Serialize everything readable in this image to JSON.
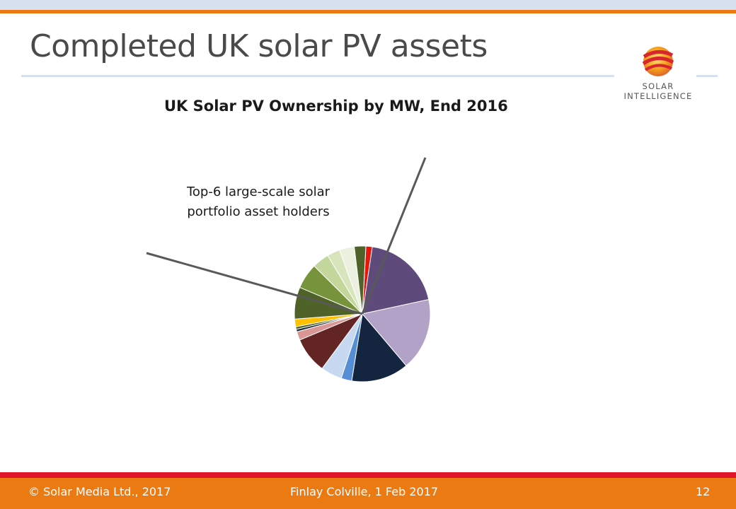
{
  "slide": {
    "title": "Completed UK solar PV assets",
    "page_number": "12"
  },
  "logo": {
    "line1": "SOLAR",
    "line2": "INTELLIGENCE"
  },
  "annotation": {
    "line1": "Top-6 large-scale solar",
    "line2": "portfolio asset holders"
  },
  "footer": {
    "copyright": "© Solar Media Ltd., 2017",
    "author_date": "Finlay Colville, 1 Feb 2017",
    "page": "12"
  },
  "chart_data": {
    "type": "pie",
    "title": "UK Solar PV Ownership by MW, End 2016",
    "start_angle_deg": 3,
    "direction": "clockwise",
    "slices": [
      {
        "value": 1.5,
        "color": "#e8150c"
      },
      {
        "value": 19.0,
        "color": "#5f4a7c"
      },
      {
        "value": 17.0,
        "color": "#b3a2c8"
      },
      {
        "value": 13.5,
        "color": "#13253f"
      },
      {
        "value": 2.5,
        "color": "#558ed5"
      },
      {
        "value": 5.0,
        "color": "#c6d9f0"
      },
      {
        "value": 8.5,
        "color": "#632523"
      },
      {
        "value": 2.0,
        "color": "#d99694"
      },
      {
        "value": 0.6,
        "color": "#1d2b3c"
      },
      {
        "value": 0.6,
        "color": "#4f6228"
      },
      {
        "value": 1.8,
        "color": "#ffc000"
      },
      {
        "value": 7.5,
        "color": "#4f6228"
      },
      {
        "value": 6.0,
        "color": "#77933c"
      },
      {
        "value": 4.0,
        "color": "#c3d69b"
      },
      {
        "value": 3.0,
        "color": "#d7e4bc"
      },
      {
        "value": 3.5,
        "color": "#ebf1de"
      },
      {
        "value": 2.7,
        "color": "#4f6228"
      }
    ],
    "callout_color": "#595959"
  }
}
